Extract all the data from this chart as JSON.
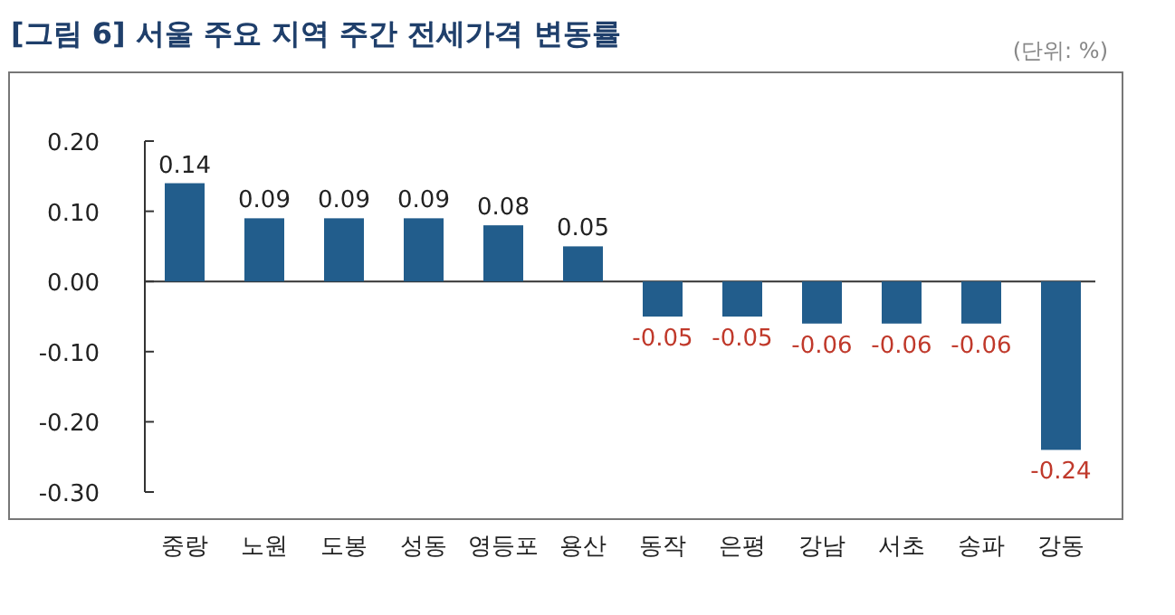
{
  "chart_data": {
    "type": "bar",
    "title": "[그림 6] 서울 주요 지역 주간 전세가격 변동률",
    "annotations": [
      "(단위: %)"
    ],
    "categories": [
      "중랑",
      "노원",
      "도봉",
      "성동",
      "영등포",
      "용산",
      "동작",
      "은평",
      "강남",
      "서초",
      "송파",
      "강동"
    ],
    "values": [
      0.14,
      0.09,
      0.09,
      0.09,
      0.08,
      0.05,
      -0.05,
      -0.05,
      -0.06,
      -0.06,
      -0.06,
      -0.24
    ],
    "color": "#225d8c",
    "ylim": [
      -0.3,
      0.2
    ],
    "yticks": [
      {
        "value": -0.3,
        "label": "-0.30"
      },
      {
        "value": -0.2,
        "label": "-0.20"
      },
      {
        "value": -0.1,
        "label": "-0.10"
      },
      {
        "value": 0,
        "label": "0.00"
      },
      {
        "value": 0.1,
        "label": "0.10"
      },
      {
        "value": 0.2,
        "label": "0.20"
      }
    ],
    "data_labels": true
  }
}
